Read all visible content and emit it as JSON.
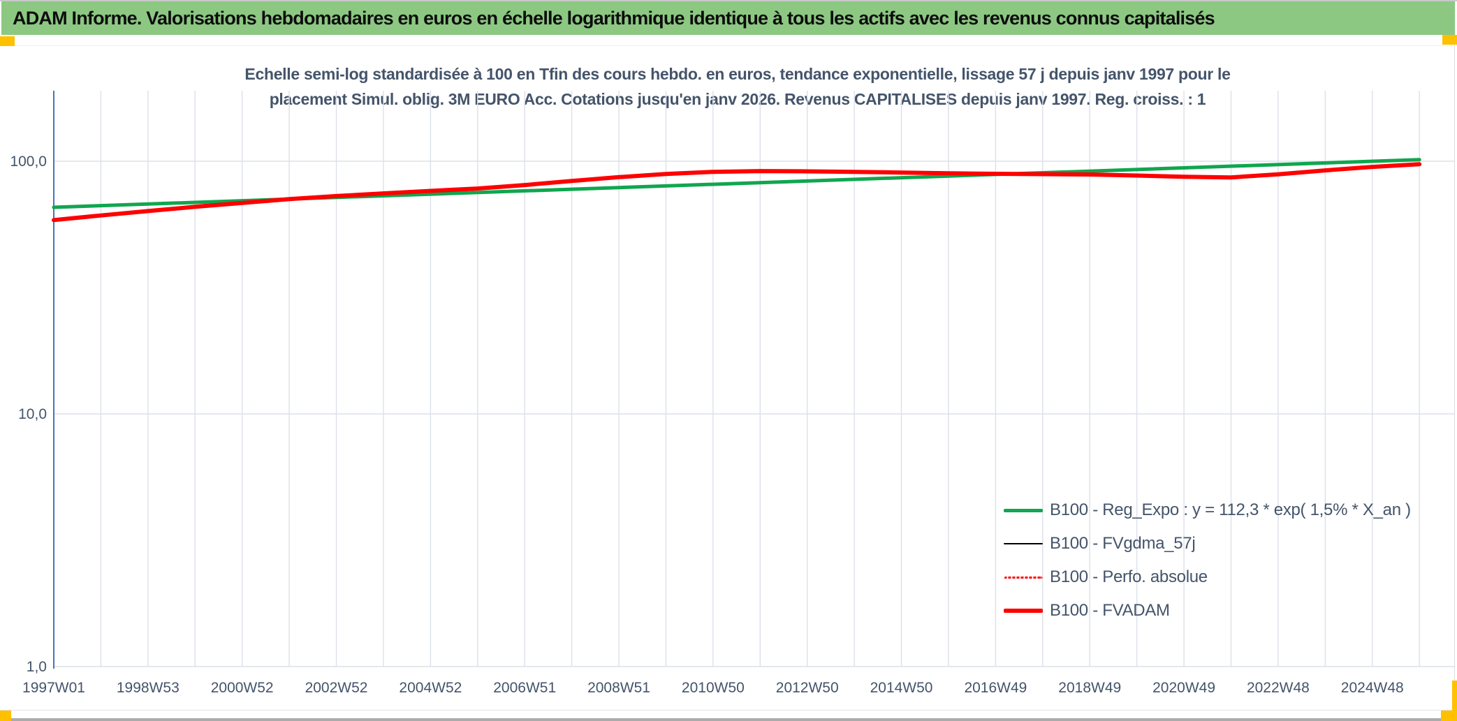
{
  "header": {
    "title": "ADAM Informe. Valorisations hebdomadaires en euros en échelle logarithmique identique à tous les actifs avec les revenus connus capitalisés"
  },
  "chart": {
    "title_line1": "Echelle semi-log standardisée à 100 en Tfin des cours hebdo. en euros, tendance exponentielle, lissage 57 j depuis janv 1997 pour le",
    "title_line2": "placement Simul. oblig. 3M EURO Acc. Cotations jusqu'en janv 2026. Revenus CAPITALISES depuis janv 1997. Reg. croiss. : 1"
  },
  "colors": {
    "header_green": "#8CC882",
    "accent_yellow": "#FFC000",
    "axis_blue": "#4472C4",
    "grid": "#dce0ea",
    "text_slate": "#44546A",
    "series_green": "#10A64F",
    "series_red": "#FF0000",
    "series_black": "#000000"
  },
  "chart_data": {
    "type": "line",
    "title": "Echelle semi-log standardisée à 100 en Tfin des cours hebdo. en euros, tendance exponentielle, lissage 57 j depuis janv 1997 pour le placement Simul. oblig. 3M EURO Acc. Cotations jusqu'en janv 2026. Revenus CAPITALISES depuis janv 1997. Reg. croiss. : 1",
    "y_scale": "log",
    "ylim": [
      1,
      190
    ],
    "grid": "on",
    "legend_position": "inside-lower-right",
    "x_axis": {
      "tick_labels": [
        "1997W01",
        "1998W53",
        "2000W52",
        "2002W52",
        "2004W52",
        "2006W51",
        "2008W51",
        "2010W50",
        "2012W50",
        "2014W50",
        "2016W49",
        "2018W49",
        "2020W49",
        "2022W48",
        "2024W48"
      ],
      "tick_interval_years": 2,
      "minor_grid_interval_years": 1,
      "range_years": [
        1997,
        2026
      ]
    },
    "y_axis": {
      "tick_values": [
        100,
        10,
        1
      ],
      "tick_labels": [
        "100,0",
        "10,0",
        "1,0"
      ]
    },
    "series": [
      {
        "name": "B100 - Reg_Expo : y = 112,3 * exp( 1,5% *  X_an )",
        "color": "#10A64F",
        "style": "solid",
        "stroke_width": 5,
        "x": [
          1997,
          2026
        ],
        "y": [
          65.7,
          101.5
        ]
      },
      {
        "name": "B100 - FVgdma_57j",
        "color": "#000000",
        "style": "solid",
        "stroke_width": 2.5,
        "x": [
          1997,
          1998,
          1999,
          2000,
          2001,
          2002,
          2003,
          2004,
          2005,
          2006,
          2007,
          2008,
          2009,
          2010,
          2011,
          2012,
          2013,
          2014,
          2015,
          2016,
          2017,
          2018,
          2019,
          2020,
          2021,
          2022,
          2023,
          2024,
          2025,
          2026
        ],
        "y": [
          58.5,
          61.0,
          63.5,
          66.0,
          68.4,
          70.8,
          72.8,
          74.6,
          76.3,
          78.0,
          80.5,
          83.5,
          86.5,
          89.0,
          90.8,
          91.4,
          91.2,
          90.8,
          90.2,
          89.6,
          89.2,
          88.9,
          88.6,
          87.8,
          86.8,
          86.3,
          88.8,
          92.0,
          95.0,
          97.3
        ]
      },
      {
        "name": "B100 - Perfo. absolue",
        "color": "#FF0000",
        "style": "dotted",
        "stroke_width": 2,
        "x": [
          1997,
          1998,
          1999,
          2000,
          2001,
          2002,
          2003,
          2004,
          2005,
          2006,
          2007,
          2008,
          2009,
          2010,
          2011,
          2012,
          2013,
          2014,
          2015,
          2016,
          2017,
          2018,
          2019,
          2020,
          2021,
          2022,
          2023,
          2024,
          2025,
          2026
        ],
        "y": [
          58.5,
          61.0,
          63.5,
          66.0,
          68.4,
          70.8,
          72.8,
          74.6,
          76.3,
          78.0,
          80.5,
          83.5,
          86.5,
          89.0,
          90.8,
          91.4,
          91.2,
          90.8,
          90.2,
          89.6,
          89.2,
          88.9,
          88.6,
          87.8,
          86.8,
          86.3,
          88.8,
          92.0,
          95.0,
          97.3
        ]
      },
      {
        "name": "B100 - FVADAM",
        "color": "#FF0000",
        "style": "solid",
        "stroke_width": 6,
        "x": [
          1997,
          1998,
          1999,
          2000,
          2001,
          2002,
          2003,
          2004,
          2005,
          2006,
          2007,
          2008,
          2009,
          2010,
          2011,
          2012,
          2013,
          2014,
          2015,
          2016,
          2017,
          2018,
          2019,
          2020,
          2021,
          2022,
          2023,
          2024,
          2025,
          2026
        ],
        "y": [
          58.5,
          61.0,
          63.5,
          66.0,
          68.4,
          70.8,
          72.8,
          74.6,
          76.3,
          78.0,
          80.5,
          83.5,
          86.5,
          89.0,
          90.8,
          91.4,
          91.2,
          90.8,
          90.2,
          89.6,
          89.2,
          88.9,
          88.6,
          87.8,
          86.8,
          86.3,
          88.8,
          92.0,
          95.0,
          97.3
        ]
      }
    ]
  }
}
